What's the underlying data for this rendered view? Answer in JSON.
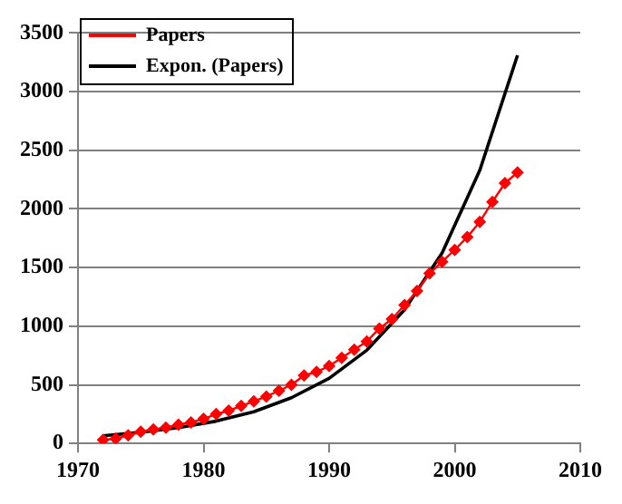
{
  "chart_data": {
    "type": "line",
    "xlim": [
      1970,
      2010
    ],
    "xticks": [
      1970,
      1980,
      1990,
      2000,
      2010
    ],
    "ylim": [
      0,
      3500
    ],
    "yticks": [
      0,
      500,
      1000,
      1500,
      2000,
      2500,
      3000,
      3500
    ],
    "grid": "y",
    "legend": "top left",
    "series": [
      {
        "name": "Papers",
        "color": "#ff0000",
        "marker": "diamond",
        "x": [
          1972,
          1973,
          1974,
          1975,
          1976,
          1977,
          1978,
          1979,
          1980,
          1981,
          1982,
          1983,
          1984,
          1985,
          1986,
          1987,
          1988,
          1989,
          1990,
          1991,
          1992,
          1993,
          1994,
          1995,
          1996,
          1997,
          1998,
          1999,
          2000,
          2001,
          2002,
          2003,
          2004,
          2005
        ],
        "values": [
          30,
          40,
          70,
          100,
          120,
          135,
          160,
          180,
          210,
          250,
          280,
          320,
          360,
          400,
          450,
          500,
          580,
          610,
          660,
          730,
          800,
          870,
          980,
          1060,
          1180,
          1300,
          1450,
          1550,
          1650,
          1760,
          1890,
          2060,
          2220,
          2310
        ]
      },
      {
        "name": "Expon. (Papers)",
        "color": "#000000",
        "marker": "none",
        "x": [
          1972,
          1975,
          1978,
          1981,
          1984,
          1987,
          1990,
          1993,
          1996,
          1999,
          2002,
          2005
        ],
        "values": [
          65,
          95,
          135,
          190,
          270,
          390,
          555,
          795,
          1140,
          1625,
          2330,
          3310
        ]
      }
    ]
  }
}
